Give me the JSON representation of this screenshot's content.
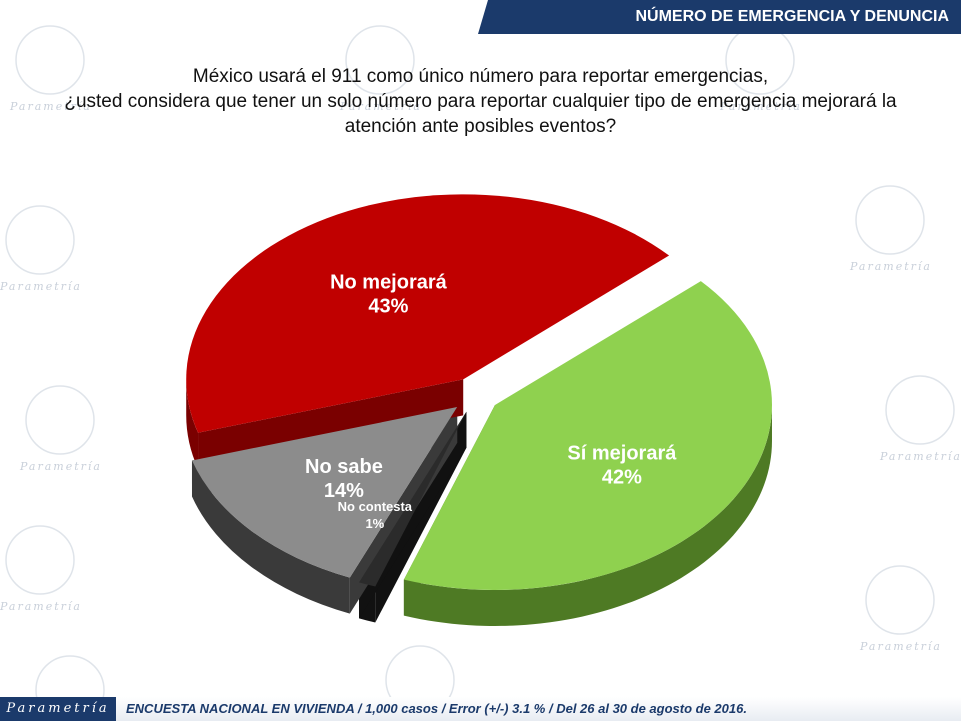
{
  "header": {
    "title": "NÚMERO DE EMERGENCIA Y DENUNCIA"
  },
  "question": {
    "lines": [
      "México usará el 911 como único número para reportar emergencias,",
      "¿usted considera que tener un solo número para reportar cualquier tipo de emergencia mejorará la",
      "atención ante posibles eventos?"
    ]
  },
  "watermark": {
    "text": "Parametría"
  },
  "footer": {
    "logo": "Parametría",
    "note": "ENCUESTA NACIONAL EN VIVIENDA / 1,000 casos / Error (+/-) 3.1 % / Del 26 al 30 de agosto de 2016."
  },
  "chart_data": {
    "type": "pie",
    "exploded": true,
    "three_d": true,
    "slices": [
      {
        "label": "Sí mejorará",
        "value": 42,
        "value_label": "42%",
        "color": "#8fd14f",
        "side_color": "#4e7a24"
      },
      {
        "label": "No mejorará",
        "value": 43,
        "value_label": "43%",
        "color": "#c00000",
        "side_color": "#7a0000"
      },
      {
        "label": "No sabe",
        "value": 14,
        "value_label": "14%",
        "color": "#8c8c8c",
        "side_color": "#3a3a3a"
      },
      {
        "label": "No contesta",
        "value": 1,
        "value_label": "1%",
        "color": "#2b2b2b",
        "side_color": "#111111"
      }
    ]
  }
}
